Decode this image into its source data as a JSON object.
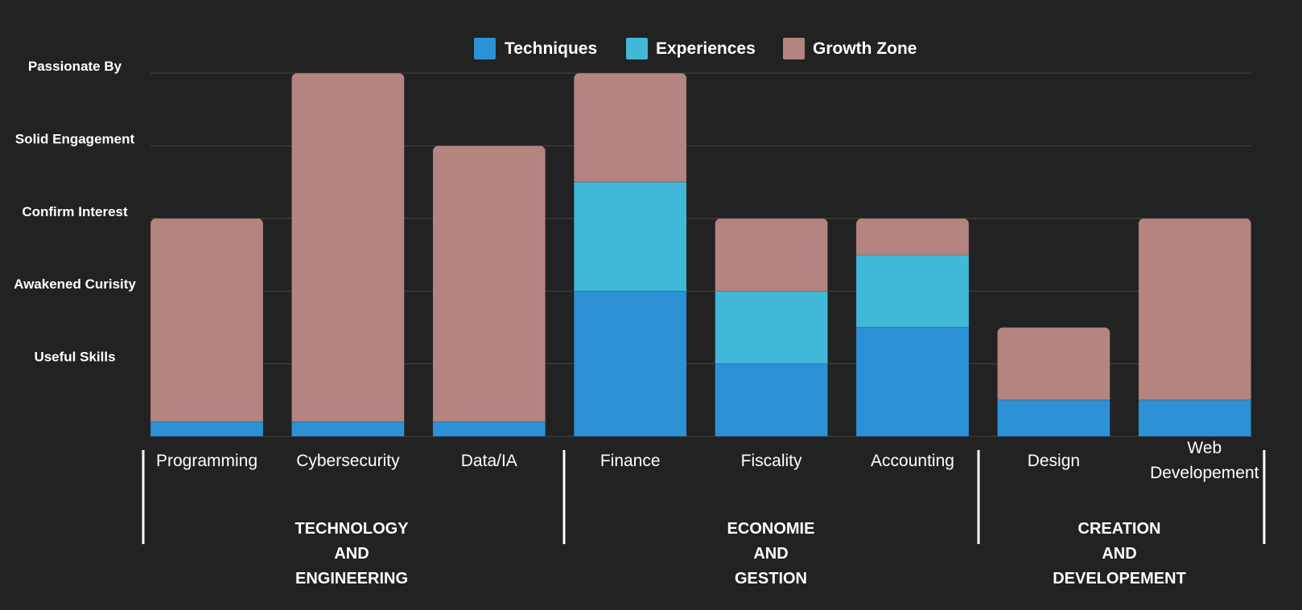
{
  "chart_data": {
    "type": "bar",
    "stacked": true,
    "legend_position": "top",
    "grid": true,
    "colors": {
      "background": "#222222",
      "grid": "#444444",
      "text": "#ffffff",
      "Techniques": "#2d91d6",
      "Experiences": "#41b8d8",
      "Growth Zone": "#b38480"
    },
    "y_levels": [
      "Useful Skills",
      "Awakened Curisity",
      "Confirm Interest",
      "Solid Engagement",
      "Passionate By"
    ],
    "ylim": [
      0,
      5
    ],
    "categories": [
      "Programming",
      "Cybersecurity",
      "Data/IA",
      "Finance",
      "Fiscality",
      "Accounting",
      "Design",
      "Web Developement"
    ],
    "category_label_lines": [
      [
        "Programming"
      ],
      [
        "Cybersecurity"
      ],
      [
        "Data/IA"
      ],
      [
        "Finance"
      ],
      [
        "Fiscality"
      ],
      [
        "Accounting"
      ],
      [
        "Design"
      ],
      [
        "Web",
        "Developement"
      ]
    ],
    "groups": [
      {
        "label_lines": [
          "TECHNOLOGY",
          "AND",
          "ENGINEERING"
        ],
        "categories": [
          "Programming",
          "Cybersecurity",
          "Data/IA"
        ]
      },
      {
        "label_lines": [
          "ECONOMIE",
          "AND",
          "GESTION"
        ],
        "categories": [
          "Finance",
          "Fiscality",
          "Accounting"
        ]
      },
      {
        "label_lines": [
          "CREATION",
          "AND",
          "DEVELOPEMENT"
        ],
        "categories": [
          "Design",
          "Web Developement"
        ]
      }
    ],
    "series": [
      {
        "name": "Techniques",
        "values": [
          0.2,
          0.2,
          0.2,
          2.0,
          1.0,
          1.5,
          0.5,
          0.5
        ]
      },
      {
        "name": "Experiences",
        "values": [
          0,
          0,
          0,
          1.5,
          1.0,
          1.0,
          0,
          0
        ]
      },
      {
        "name": "Growth Zone",
        "values": [
          2.8,
          4.8,
          3.8,
          1.5,
          1.0,
          0.5,
          1.0,
          2.5
        ]
      }
    ]
  }
}
